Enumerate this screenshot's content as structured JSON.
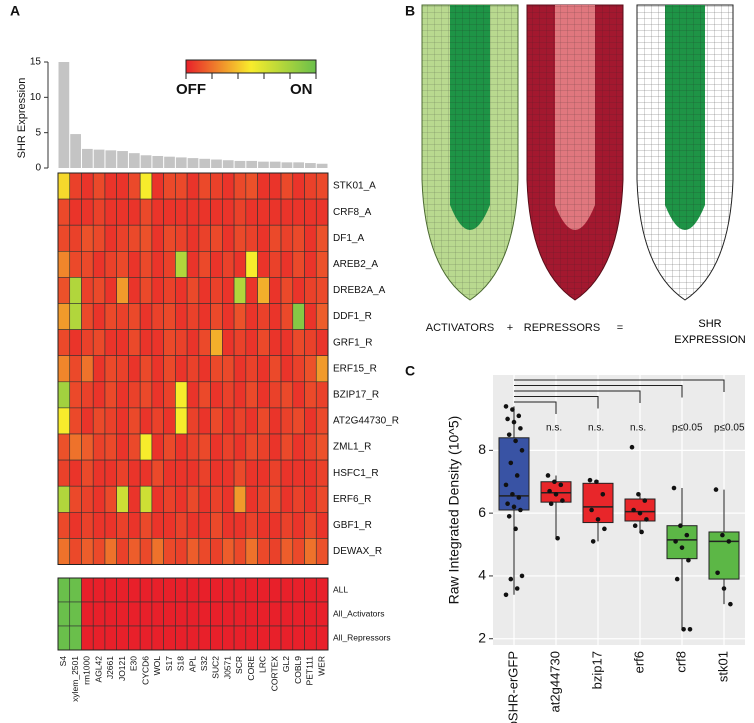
{
  "chart_data": [
    {
      "type": "bar",
      "panel": "A",
      "ylabel": "SHR Expression",
      "categories": [
        "S4",
        "xylem_2501",
        "rm1000",
        "AGL42",
        "J2661",
        "JO121",
        "E30",
        "CYCD6",
        "WOL",
        "S17",
        "S18",
        "APL",
        "S32",
        "SUC2",
        "J0571",
        "SCR",
        "CORE",
        "LRC",
        "CORTEX",
        "GL2",
        "COBL9",
        "PET111",
        "WER"
      ],
      "values": [
        15,
        4.8,
        2.7,
        2.6,
        2.5,
        2.4,
        2.1,
        1.8,
        1.7,
        1.6,
        1.5,
        1.4,
        1.3,
        1.2,
        1.1,
        1.0,
        1.0,
        0.9,
        0.9,
        0.8,
        0.8,
        0.7,
        0.6
      ],
      "color": "#c4c4c4",
      "ylim": [
        0,
        15
      ],
      "yticks": [
        0,
        5,
        10,
        15
      ]
    },
    {
      "type": "heatmap",
      "color_scale": [
        "#e8202a",
        "#f7ec2c",
        "#6abf4b"
      ],
      "zlim": [
        0,
        1
      ],
      "colorbar_labels": [
        "OFF",
        "ON"
      ],
      "rows": [
        "STK01_A",
        "CRF8_A",
        "DF1_A",
        "AREB2_A",
        "DREB2A_A",
        "DDF1_R",
        "GRF1_R",
        "ERF15_R",
        "BZIP17_R",
        "AT2G44730_R",
        "ZML1_R",
        "HSFC1_R",
        "ERF6_R",
        "GBF1_R",
        "DEWAX_R"
      ],
      "values": [
        [
          0.45,
          0.08,
          0.05,
          0.1,
          0.05,
          0.05,
          0.1,
          0.5,
          0.05,
          0.1,
          0.1,
          0.05,
          0.1,
          0.08,
          0.05,
          0.1,
          0.12,
          0.05,
          0.05,
          0.1,
          0.05,
          0.08,
          0.1
        ],
        [
          0.1,
          0.05,
          0.05,
          0.08,
          0.05,
          0.05,
          0.05,
          0.1,
          0.05,
          0.05,
          0.05,
          0.05,
          0.05,
          0.05,
          0.05,
          0.08,
          0.05,
          0.05,
          0.05,
          0.05,
          0.05,
          0.05,
          0.05
        ],
        [
          0.1,
          0.08,
          0.12,
          0.1,
          0.05,
          0.08,
          0.1,
          0.12,
          0.05,
          0.1,
          0.08,
          0.05,
          0.08,
          0.1,
          0.05,
          0.1,
          0.08,
          0.05,
          0.1,
          0.08,
          0.1,
          0.05,
          0.12
        ],
        [
          0.25,
          0.1,
          0.1,
          0.05,
          0.08,
          0.1,
          0.05,
          0.1,
          0.05,
          0.08,
          0.75,
          0.05,
          0.1,
          0.05,
          0.08,
          0.05,
          0.5,
          0.05,
          0.08,
          0.05,
          0.1,
          0.05,
          0.12
        ],
        [
          0.12,
          0.75,
          0.08,
          0.1,
          0.05,
          0.3,
          0.05,
          0.1,
          0.05,
          0.08,
          0.05,
          0.1,
          0.05,
          0.08,
          0.05,
          0.75,
          0.05,
          0.35,
          0.05,
          0.1,
          0.05,
          0.08,
          0.1
        ],
        [
          0.3,
          0.75,
          0.1,
          0.05,
          0.1,
          0.08,
          0.1,
          0.05,
          0.08,
          0.1,
          0.05,
          0.08,
          0.05,
          0.1,
          0.05,
          0.12,
          0.05,
          0.08,
          0.05,
          0.1,
          0.9,
          0.05,
          0.15
        ],
        [
          0.1,
          0.05,
          0.08,
          0.1,
          0.05,
          0.05,
          0.1,
          0.05,
          0.05,
          0.1,
          0.08,
          0.05,
          0.1,
          0.35,
          0.05,
          0.08,
          0.05,
          0.1,
          0.05,
          0.05,
          0.1,
          0.08,
          0.05
        ],
        [
          0.25,
          0.1,
          0.2,
          0.05,
          0.1,
          0.08,
          0.05,
          0.1,
          0.05,
          0.1,
          0.05,
          0.08,
          0.05,
          0.1,
          0.1,
          0.05,
          0.08,
          0.05,
          0.1,
          0.05,
          0.08,
          0.12,
          0.3
        ],
        [
          0.8,
          0.1,
          0.08,
          0.05,
          0.1,
          0.05,
          0.08,
          0.1,
          0.05,
          0.08,
          0.5,
          0.05,
          0.1,
          0.05,
          0.08,
          0.05,
          0.1,
          0.05,
          0.08,
          0.1,
          0.05,
          0.1,
          0.08
        ],
        [
          0.5,
          0.1,
          0.05,
          0.1,
          0.08,
          0.05,
          0.1,
          0.05,
          0.08,
          0.05,
          0.5,
          0.08,
          0.05,
          0.1,
          0.05,
          0.08,
          0.05,
          0.1,
          0.05,
          0.08,
          0.1,
          0.05,
          0.1
        ],
        [
          0.12,
          0.2,
          0.15,
          0.08,
          0.1,
          0.05,
          0.1,
          0.5,
          0.05,
          0.1,
          0.05,
          0.08,
          0.1,
          0.05,
          0.08,
          0.05,
          0.1,
          0.08,
          0.05,
          0.1,
          0.05,
          0.08,
          0.12
        ],
        [
          0.08,
          0.05,
          0.1,
          0.05,
          0.05,
          0.08,
          0.05,
          0.05,
          0.1,
          0.05,
          0.05,
          0.05,
          0.08,
          0.05,
          0.05,
          0.1,
          0.05,
          0.05,
          0.08,
          0.05,
          0.05,
          0.05,
          0.08
        ],
        [
          0.75,
          0.1,
          0.08,
          0.05,
          0.1,
          0.65,
          0.05,
          0.65,
          0.05,
          0.08,
          0.05,
          0.1,
          0.05,
          0.08,
          0.05,
          0.3,
          0.05,
          0.08,
          0.1,
          0.05,
          0.08,
          0.05,
          0.1
        ],
        [
          0.1,
          0.05,
          0.08,
          0.05,
          0.05,
          0.08,
          0.05,
          0.1,
          0.05,
          0.05,
          0.08,
          0.05,
          0.05,
          0.1,
          0.05,
          0.05,
          0.08,
          0.05,
          0.05,
          0.08,
          0.05,
          0.1,
          0.05
        ],
        [
          0.2,
          0.1,
          0.15,
          0.1,
          0.2,
          0.08,
          0.15,
          0.1,
          0.2,
          0.1,
          0.08,
          0.15,
          0.1,
          0.08,
          0.15,
          0.1,
          0.2,
          0.1,
          0.08,
          0.15,
          0.1,
          0.2,
          0.12
        ]
      ]
    },
    {
      "type": "heatmap",
      "rows": [
        "ALL",
        "All_Activators",
        "All_Repressors"
      ],
      "values": [
        [
          1,
          1,
          0,
          0,
          0,
          0,
          0,
          0,
          0,
          0,
          0,
          0,
          0,
          0,
          0,
          0,
          0,
          0,
          0,
          0,
          0,
          0,
          0
        ],
        [
          1,
          1,
          0,
          0,
          0,
          0,
          0,
          0,
          0,
          0,
          0,
          0,
          0,
          0,
          0,
          0,
          0,
          0,
          0,
          0,
          0,
          0,
          0
        ],
        [
          1,
          1,
          0,
          0,
          0,
          0,
          0,
          0,
          0,
          0,
          0,
          0,
          0,
          0,
          0,
          0,
          0,
          0,
          0,
          0,
          0,
          0,
          0
        ]
      ]
    },
    {
      "type": "box",
      "panel": "C",
      "ylabel": "Raw Integrated Density (10^5)",
      "categories": [
        "pSHR-erGFP",
        "at2g44730",
        "bzip17",
        "erf6",
        "crf8",
        "stk01"
      ],
      "colors": [
        "#3953a4",
        "#e8262a",
        "#e8262a",
        "#e8262a",
        "#5cb746",
        "#5cb746"
      ],
      "whisker_low": [
        3.4,
        5.2,
        5.1,
        5.4,
        2.3,
        3.1
      ],
      "q1": [
        6.1,
        6.35,
        5.7,
        5.75,
        4.55,
        3.9
      ],
      "median": [
        6.55,
        6.65,
        6.2,
        6.05,
        5.15,
        5.1
      ],
      "q3": [
        8.4,
        7.0,
        6.95,
        6.45,
        5.6,
        5.4
      ],
      "whisker_high": [
        9.4,
        7.2,
        7.05,
        6.6,
        6.8,
        6.75
      ],
      "points": [
        [
          9.4,
          9.3,
          9.1,
          9.0,
          8.9,
          8.7,
          8.5,
          8.3,
          8.0,
          7.6,
          7.2,
          6.9,
          6.6,
          6.5,
          6.3,
          6.2,
          6.1,
          5.9,
          5.5,
          4.0,
          3.9,
          3.6,
          3.4
        ],
        [
          7.2,
          7.0,
          6.9,
          6.7,
          6.6,
          6.4,
          6.3,
          5.2
        ],
        [
          7.05,
          7.0,
          6.6,
          6.1,
          5.8,
          5.5,
          5.1
        ],
        [
          8.1,
          6.6,
          6.4,
          6.1,
          6.0,
          5.8,
          5.6,
          5.4
        ],
        [
          6.8,
          5.6,
          5.3,
          5.1,
          4.9,
          4.5,
          3.9,
          2.3,
          2.3
        ],
        [
          6.75,
          5.3,
          5.1,
          4.1,
          3.6,
          3.1
        ]
      ],
      "significance": [
        "n.s.",
        "n.s.",
        "n.s.",
        "p≤0.05",
        "p≤0.05"
      ],
      "ylim": [
        1.8,
        10.4
      ],
      "yticks": [
        2,
        4,
        6,
        8
      ]
    }
  ],
  "diagram": {
    "panel": "B",
    "labels": [
      "ACTIVATORS",
      "+",
      "REPRESSORS",
      "=",
      "SHR EXPRESSION"
    ]
  }
}
